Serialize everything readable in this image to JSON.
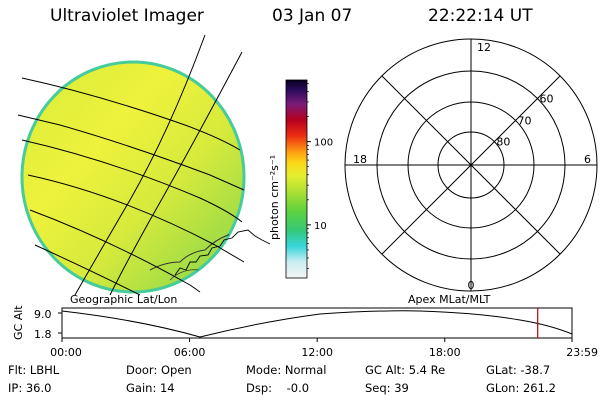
{
  "header": {
    "title": "Ultraviolet Imager",
    "date": "03 Jan 07",
    "time": "22:22:14 UT"
  },
  "colorbar": {
    "unit_label": "photon cm⁻²s⁻¹",
    "ticks": [
      {
        "label": "100",
        "value": 100
      },
      {
        "label": "10",
        "value": 10
      }
    ]
  },
  "panels": {
    "left_label": "Geographic Lat/Lon",
    "right_label": "Apex MLat/MLT"
  },
  "polar_plot": {
    "mlt_labels": [
      {
        "label": "12",
        "angle_deg": 90
      },
      {
        "label": "18",
        "angle_deg": 180
      },
      {
        "label": "6",
        "angle_deg": 0
      },
      {
        "label": "0",
        "angle_deg": 270
      }
    ],
    "mlat_labels": [
      "60",
      "70",
      "80"
    ]
  },
  "timeline": {
    "axis_label": "GC Alt",
    "y_ticks": [
      "9.0",
      "1.8"
    ],
    "x_ticks": [
      "00:00",
      "06:00",
      "12:00",
      "18:00",
      "23:59"
    ],
    "marker_time_hours": 22.37
  },
  "info": {
    "flt": "Flt: LBHL",
    "ip": "IP: 36.0",
    "door": "Door: Open",
    "gain": "Gain: 14",
    "mode": "Mode: Normal",
    "dsp": "Dsp:    -0.0",
    "gcalt": "GC Alt: 5.4 Re",
    "seq": "Seq: 39",
    "glat": "GLat: -38.7",
    "glon": "GLon: 261.2"
  },
  "colors": {
    "marker": "#c0000a"
  }
}
